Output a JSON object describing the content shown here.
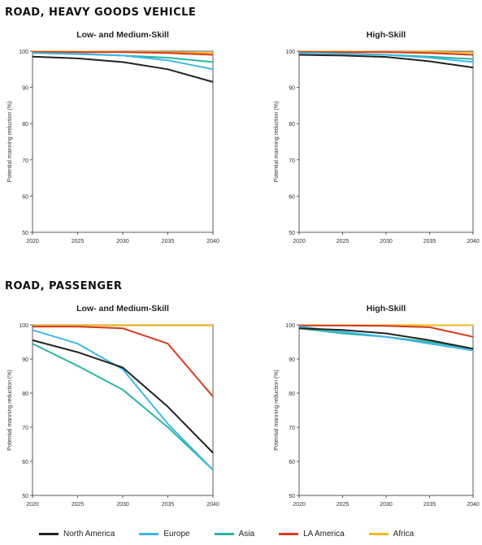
{
  "sections": [
    {
      "title": "ROAD, HEAVY GOODS VEHICLE"
    },
    {
      "title": "ROAD, PASSENGER"
    }
  ],
  "legend": [
    {
      "label": "North America",
      "color": "#222222"
    },
    {
      "label": "Europe",
      "color": "#3fb6e8"
    },
    {
      "label": "Asia",
      "color": "#2ab5a0"
    },
    {
      "label": "LA America",
      "color": "#d63a1e"
    },
    {
      "label": "Africa",
      "color": "#f5b820"
    }
  ],
  "chart_data": [
    {
      "type": "line",
      "section": 0,
      "title": "Low- and Medium-Skill",
      "ylabel": "Potential manning reduction (%)",
      "x": [
        2020,
        2025,
        2030,
        2035,
        2040
      ],
      "ylim": [
        50,
        100
      ],
      "yticks": [
        50,
        60,
        70,
        80,
        90,
        100
      ],
      "series": [
        {
          "name": "North America",
          "values": [
            98.5,
            98.0,
            97.0,
            95.0,
            91.5
          ]
        },
        {
          "name": "Europe",
          "values": [
            99.5,
            99.3,
            98.8,
            97.5,
            95.0
          ]
        },
        {
          "name": "Asia",
          "values": [
            99.5,
            99.2,
            98.8,
            98.2,
            97.0
          ]
        },
        {
          "name": "LA America",
          "values": [
            99.8,
            99.7,
            99.7,
            99.5,
            99.0
          ]
        },
        {
          "name": "Africa",
          "values": [
            99.9,
            99.9,
            99.8,
            99.7,
            99.5
          ]
        }
      ]
    },
    {
      "type": "line",
      "section": 0,
      "title": "High-Skill",
      "ylabel": "Potential manning reduction (%)",
      "x": [
        2020,
        2025,
        2030,
        2035,
        2040
      ],
      "ylim": [
        50,
        100
      ],
      "yticks": [
        50,
        60,
        70,
        80,
        90,
        100
      ],
      "series": [
        {
          "name": "North America",
          "values": [
            99.0,
            98.8,
            98.4,
            97.2,
            95.5
          ]
        },
        {
          "name": "Europe",
          "values": [
            99.5,
            99.3,
            99.0,
            98.2,
            97.0
          ]
        },
        {
          "name": "Asia",
          "values": [
            99.5,
            99.3,
            99.0,
            98.5,
            97.8
          ]
        },
        {
          "name": "LA America",
          "values": [
            99.8,
            99.7,
            99.7,
            99.5,
            99.0
          ]
        },
        {
          "name": "Africa",
          "values": [
            99.9,
            99.9,
            99.8,
            99.8,
            99.6
          ]
        }
      ]
    },
    {
      "type": "line",
      "section": 1,
      "title": "Low- and Medium-Skill",
      "ylabel": "Potential manning reduction (%)",
      "x": [
        2020,
        2025,
        2030,
        2035,
        2040
      ],
      "ylim": [
        50,
        100
      ],
      "yticks": [
        50,
        60,
        70,
        80,
        90,
        100
      ],
      "series": [
        {
          "name": "North America",
          "values": [
            95.5,
            92.0,
            87.5,
            76.0,
            62.5
          ]
        },
        {
          "name": "Europe",
          "values": [
            98.5,
            94.5,
            87.0,
            71.0,
            57.5
          ]
        },
        {
          "name": "Asia",
          "values": [
            94.5,
            88.0,
            81.0,
            70.0,
            57.5
          ]
        },
        {
          "name": "LA America",
          "values": [
            99.5,
            99.5,
            99.0,
            94.5,
            79.0
          ]
        },
        {
          "name": "Africa",
          "values": [
            99.8,
            99.8,
            99.8,
            99.8,
            99.8
          ]
        }
      ]
    },
    {
      "type": "line",
      "section": 1,
      "title": "High-Skill",
      "ylabel": "Potential manning reduction (%)",
      "x": [
        2020,
        2025,
        2030,
        2035,
        2040
      ],
      "ylim": [
        50,
        100
      ],
      "yticks": [
        50,
        60,
        70,
        80,
        90,
        100
      ],
      "series": [
        {
          "name": "North America",
          "values": [
            99.0,
            98.5,
            97.5,
            95.5,
            93.0
          ]
        },
        {
          "name": "Europe",
          "values": [
            99.5,
            98.0,
            96.5,
            94.5,
            92.5
          ]
        },
        {
          "name": "Asia",
          "values": [
            99.0,
            97.5,
            96.5,
            95.0,
            93.0
          ]
        },
        {
          "name": "LA America",
          "values": [
            99.8,
            99.8,
            99.7,
            99.3,
            96.5
          ]
        },
        {
          "name": "Africa",
          "values": [
            99.9,
            99.9,
            99.9,
            99.9,
            99.9
          ]
        }
      ]
    }
  ]
}
